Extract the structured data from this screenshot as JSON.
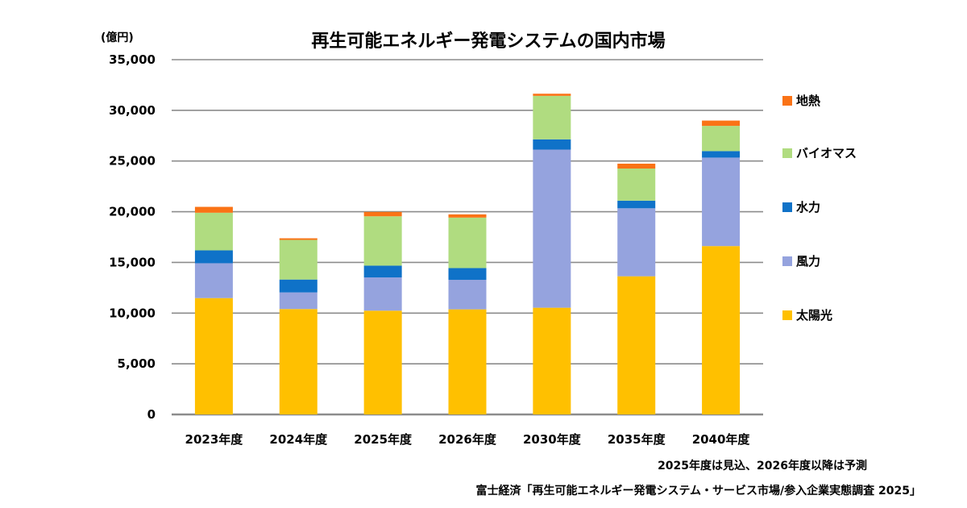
{
  "chart_data": {
    "type": "bar",
    "stacked": true,
    "title": "再生可能エネルギー発電システムの国内市場",
    "ylabel": "(億円)",
    "xlabel": "",
    "ylim": [
      0,
      35000
    ],
    "yticks": [
      0,
      5000,
      10000,
      15000,
      20000,
      25000,
      30000,
      35000
    ],
    "ytick_labels": [
      "0",
      "5,000",
      "10,000",
      "15,000",
      "20,000",
      "25,000",
      "30,000",
      "35,000"
    ],
    "grid": true,
    "legend_position": "right",
    "categories": [
      "2023年度",
      "2024年度",
      "2025年度",
      "2026年度",
      "2030年度",
      "2035年度",
      "2040年度"
    ],
    "series": [
      {
        "name": "太陽光",
        "color": "#FFC000",
        "values": [
          11480,
          10400,
          10240,
          10370,
          10530,
          13630,
          16610
        ]
      },
      {
        "name": "風力",
        "color": "#95A3DE",
        "values": [
          3440,
          1640,
          3280,
          2910,
          15600,
          6710,
          8730
        ]
      },
      {
        "name": "水力",
        "color": "#0F72C8",
        "values": [
          1270,
          1270,
          1160,
          1160,
          1010,
          750,
          640
        ]
      },
      {
        "name": "バイオマス",
        "color": "#B0DC80",
        "values": [
          3710,
          3910,
          4870,
          4980,
          4290,
          3170,
          2490
        ]
      },
      {
        "name": "地熱",
        "color": "#FA7316",
        "values": [
          580,
          160,
          430,
          320,
          210,
          480,
          520
        ]
      }
    ],
    "legend_order": [
      "地熱",
      "バイオマス",
      "水力",
      "風力",
      "太陽光"
    ],
    "annotations": [
      "2025年度は見込、2026年度以降は予測",
      "富士経済「再生可能エネルギー発電システム・サービス市場/参入企業実態調査 2025」"
    ]
  }
}
